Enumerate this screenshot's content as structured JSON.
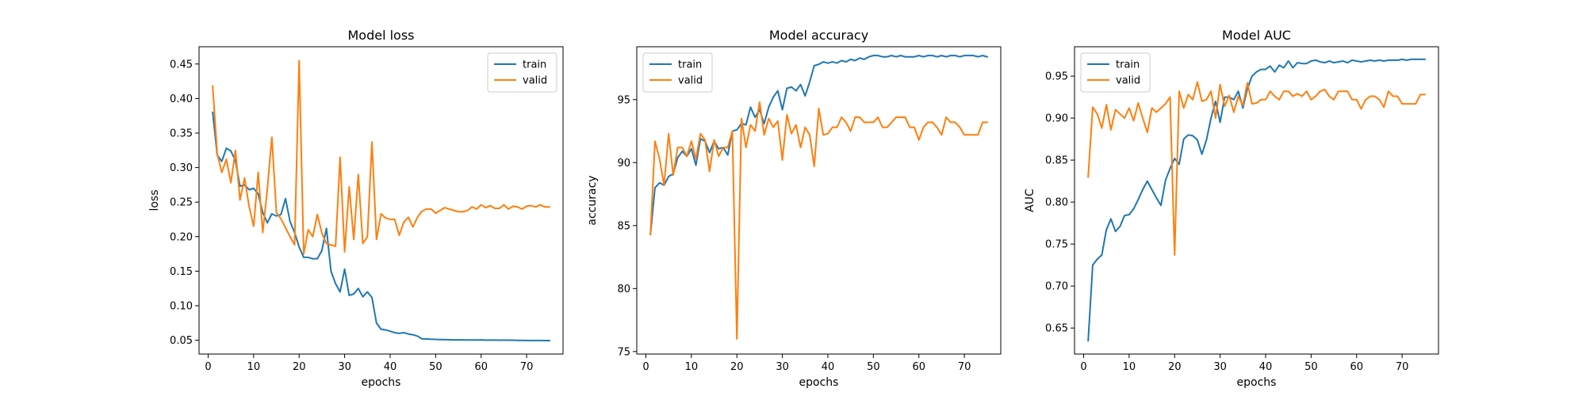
{
  "colors": {
    "train": "#1f77b4",
    "valid": "#ff7f0e"
  },
  "chart_data": [
    {
      "type": "line",
      "title": "Model loss",
      "xlabel": "epochs",
      "ylabel": "loss",
      "xlim": [
        -2,
        78
      ],
      "ylim": [
        0.03,
        0.475
      ],
      "xticks": [
        0,
        10,
        20,
        30,
        40,
        50,
        60,
        70
      ],
      "yticks": [
        0.05,
        0.1,
        0.15,
        0.2,
        0.25,
        0.3,
        0.35,
        0.4,
        0.45
      ],
      "ytick_labels": [
        "0.05",
        "0.10",
        "0.15",
        "0.20",
        "0.25",
        "0.30",
        "0.35",
        "0.40",
        "0.45"
      ],
      "legend": "top-right",
      "grid": false,
      "series": [
        {
          "name": "train",
          "color": "#1f77b4",
          "x": [
            1,
            2,
            3,
            4,
            5,
            6,
            7,
            8,
            9,
            10,
            11,
            12,
            13,
            14,
            15,
            16,
            17,
            18,
            19,
            20,
            21,
            22,
            23,
            24,
            25,
            26,
            27,
            28,
            29,
            30,
            31,
            32,
            33,
            34,
            35,
            36,
            37,
            38,
            39,
            40,
            41,
            42,
            43,
            44,
            45,
            46,
            47,
            48,
            49,
            50,
            51,
            52,
            53,
            54,
            55,
            56,
            57,
            58,
            59,
            60,
            61,
            62,
            63,
            64,
            65,
            66,
            67,
            68,
            69,
            70,
            71,
            72,
            73,
            74,
            75
          ],
          "y": [
            0.38,
            0.318,
            0.309,
            0.328,
            0.324,
            0.31,
            0.273,
            0.275,
            0.268,
            0.27,
            0.262,
            0.235,
            0.22,
            0.233,
            0.23,
            0.232,
            0.255,
            0.222,
            0.206,
            0.185,
            0.17,
            0.17,
            0.168,
            0.168,
            0.18,
            0.212,
            0.15,
            0.132,
            0.12,
            0.153,
            0.115,
            0.117,
            0.125,
            0.113,
            0.12,
            0.112,
            0.075,
            0.066,
            0.065,
            0.063,
            0.061,
            0.06,
            0.061,
            0.059,
            0.058,
            0.056,
            0.052,
            0.052,
            0.0515,
            0.0512,
            0.051,
            0.051,
            0.0507,
            0.0505,
            0.0505,
            0.0505,
            0.0503,
            0.0503,
            0.0503,
            0.0505,
            0.0502,
            0.0502,
            0.0502,
            0.05,
            0.0502,
            0.05,
            0.05,
            0.0498,
            0.0498,
            0.0497,
            0.0497,
            0.0496,
            0.0496,
            0.0495,
            0.0495
          ]
        },
        {
          "name": "valid",
          "color": "#ff7f0e",
          "x": [
            1,
            2,
            3,
            4,
            5,
            6,
            7,
            8,
            9,
            10,
            11,
            12,
            13,
            14,
            15,
            16,
            17,
            18,
            19,
            20,
            21,
            22,
            23,
            24,
            25,
            26,
            27,
            28,
            29,
            30,
            31,
            32,
            33,
            34,
            35,
            36,
            37,
            38,
            39,
            40,
            41,
            42,
            43,
            44,
            45,
            46,
            47,
            48,
            49,
            50,
            51,
            52,
            53,
            54,
            55,
            56,
            57,
            58,
            59,
            60,
            61,
            62,
            63,
            64,
            65,
            66,
            67,
            68,
            69,
            70,
            71,
            72,
            73,
            74,
            75
          ],
          "y": [
            0.418,
            0.32,
            0.293,
            0.312,
            0.278,
            0.325,
            0.253,
            0.285,
            0.244,
            0.215,
            0.293,
            0.206,
            0.268,
            0.344,
            0.235,
            0.226,
            0.213,
            0.2,
            0.188,
            0.455,
            0.175,
            0.21,
            0.2,
            0.232,
            0.205,
            0.19,
            0.188,
            0.186,
            0.315,
            0.178,
            0.272,
            0.196,
            0.29,
            0.19,
            0.2,
            0.337,
            0.196,
            0.233,
            0.227,
            0.225,
            0.225,
            0.202,
            0.221,
            0.228,
            0.214,
            0.228,
            0.237,
            0.24,
            0.24,
            0.234,
            0.238,
            0.242,
            0.24,
            0.238,
            0.236,
            0.236,
            0.238,
            0.243,
            0.24,
            0.246,
            0.242,
            0.245,
            0.241,
            0.241,
            0.246,
            0.24,
            0.244,
            0.243,
            0.24,
            0.244,
            0.245,
            0.243,
            0.246,
            0.243,
            0.243
          ]
        }
      ]
    },
    {
      "type": "line",
      "title": "Model accuracy",
      "xlabel": "epochs",
      "ylabel": "accuracy",
      "xlim": [
        -2,
        78
      ],
      "ylim": [
        74.8,
        99.2
      ],
      "xticks": [
        0,
        10,
        20,
        30,
        40,
        50,
        60,
        70
      ],
      "yticks": [
        75,
        80,
        85,
        90,
        95
      ],
      "ytick_labels": [
        "75",
        "80",
        "85",
        "90",
        "95"
      ],
      "legend": "top-left",
      "grid": false,
      "series": [
        {
          "name": "train",
          "color": "#1f77b4",
          "x": [
            1,
            2,
            3,
            4,
            5,
            6,
            7,
            8,
            9,
            10,
            11,
            12,
            13,
            14,
            15,
            16,
            17,
            18,
            19,
            20,
            21,
            22,
            23,
            24,
            25,
            26,
            27,
            28,
            29,
            30,
            31,
            32,
            33,
            34,
            35,
            36,
            37,
            38,
            39,
            40,
            41,
            42,
            43,
            44,
            45,
            46,
            47,
            48,
            49,
            50,
            51,
            52,
            53,
            54,
            55,
            56,
            57,
            58,
            59,
            60,
            61,
            62,
            63,
            64,
            65,
            66,
            67,
            68,
            69,
            70,
            71,
            72,
            73,
            74,
            75
          ],
          "y": [
            84.3,
            88.0,
            88.4,
            88.2,
            88.9,
            89.1,
            90.4,
            90.9,
            90.5,
            91.1,
            89.8,
            91.9,
            91.7,
            90.8,
            91.7,
            91.1,
            91.2,
            90.6,
            92.5,
            92.6,
            93.1,
            93.0,
            94.4,
            93.6,
            94.2,
            93.1,
            94.4,
            95.2,
            95.7,
            94.2,
            95.9,
            96.0,
            95.7,
            96.2,
            95.3,
            96.4,
            97.7,
            97.8,
            98.0,
            97.9,
            98.0,
            97.9,
            98.1,
            98.0,
            98.2,
            98.1,
            98.3,
            98.2,
            98.4,
            98.5,
            98.5,
            98.4,
            98.4,
            98.5,
            98.4,
            98.5,
            98.4,
            98.4,
            98.4,
            98.5,
            98.4,
            98.5,
            98.5,
            98.4,
            98.5,
            98.4,
            98.5,
            98.5,
            98.4,
            98.5,
            98.5,
            98.5,
            98.4,
            98.5,
            98.4
          ]
        },
        {
          "name": "valid",
          "color": "#ff7f0e",
          "x": [
            1,
            2,
            3,
            4,
            5,
            6,
            7,
            8,
            9,
            10,
            11,
            12,
            13,
            14,
            15,
            16,
            17,
            18,
            19,
            20,
            21,
            22,
            23,
            24,
            25,
            26,
            27,
            28,
            29,
            30,
            31,
            32,
            33,
            34,
            35,
            36,
            37,
            38,
            39,
            40,
            41,
            42,
            43,
            44,
            45,
            46,
            47,
            48,
            49,
            50,
            51,
            52,
            53,
            54,
            55,
            56,
            57,
            58,
            59,
            60,
            61,
            62,
            63,
            64,
            65,
            66,
            67,
            68,
            69,
            70,
            71,
            72,
            73,
            74,
            75
          ],
          "y": [
            84.3,
            91.7,
            90.3,
            88.2,
            92.3,
            89.0,
            91.2,
            91.2,
            90.5,
            91.7,
            90.3,
            92.3,
            91.8,
            89.3,
            91.8,
            90.5,
            91.2,
            91.2,
            92.5,
            76.0,
            93.5,
            91.2,
            93.0,
            92.5,
            94.8,
            92.2,
            93.5,
            92.8,
            93.3,
            90.2,
            93.8,
            92.3,
            93.0,
            91.2,
            92.8,
            92.2,
            89.7,
            94.3,
            92.2,
            92.3,
            92.8,
            92.8,
            93.6,
            93.2,
            92.5,
            93.6,
            93.6,
            93.2,
            93.2,
            93.2,
            93.6,
            92.8,
            92.8,
            93.2,
            93.6,
            93.6,
            93.6,
            92.8,
            92.8,
            91.8,
            92.8,
            93.2,
            93.2,
            92.8,
            92.2,
            93.6,
            93.2,
            93.2,
            92.8,
            92.2,
            92.2,
            92.2,
            92.2,
            93.2,
            93.2
          ]
        }
      ]
    },
    {
      "type": "line",
      "title": "Model AUC",
      "xlabel": "epochs",
      "ylabel": "AUC",
      "xlim": [
        -2,
        78
      ],
      "ylim": [
        0.619,
        0.985
      ],
      "xticks": [
        0,
        10,
        20,
        30,
        40,
        50,
        60,
        70
      ],
      "yticks": [
        0.65,
        0.7,
        0.75,
        0.8,
        0.85,
        0.9,
        0.95
      ],
      "ytick_labels": [
        "0.65",
        "0.70",
        "0.75",
        "0.80",
        "0.85",
        "0.90",
        "0.95"
      ],
      "legend": "top-left",
      "grid": false,
      "series": [
        {
          "name": "train",
          "color": "#1f77b4",
          "x": [
            1,
            2,
            3,
            4,
            5,
            6,
            7,
            8,
            9,
            10,
            11,
            12,
            13,
            14,
            15,
            16,
            17,
            18,
            19,
            20,
            21,
            22,
            23,
            24,
            25,
            26,
            27,
            28,
            29,
            30,
            31,
            32,
            33,
            34,
            35,
            36,
            37,
            38,
            39,
            40,
            41,
            42,
            43,
            44,
            45,
            46,
            47,
            48,
            49,
            50,
            51,
            52,
            53,
            54,
            55,
            56,
            57,
            58,
            59,
            60,
            61,
            62,
            63,
            64,
            65,
            66,
            67,
            68,
            69,
            70,
            71,
            72,
            73,
            74,
            75
          ],
          "y": [
            0.635,
            0.725,
            0.732,
            0.737,
            0.767,
            0.78,
            0.765,
            0.771,
            0.784,
            0.785,
            0.792,
            0.803,
            0.815,
            0.825,
            0.815,
            0.805,
            0.796,
            0.826,
            0.84,
            0.852,
            0.845,
            0.875,
            0.88,
            0.879,
            0.874,
            0.857,
            0.874,
            0.9,
            0.92,
            0.895,
            0.925,
            0.925,
            0.922,
            0.932,
            0.912,
            0.935,
            0.95,
            0.955,
            0.958,
            0.958,
            0.962,
            0.955,
            0.963,
            0.96,
            0.968,
            0.96,
            0.966,
            0.965,
            0.965,
            0.968,
            0.969,
            0.967,
            0.966,
            0.968,
            0.966,
            0.967,
            0.968,
            0.966,
            0.969,
            0.968,
            0.967,
            0.968,
            0.969,
            0.968,
            0.969,
            0.968,
            0.969,
            0.969,
            0.969,
            0.97,
            0.969,
            0.97,
            0.97,
            0.97,
            0.97
          ]
        },
        {
          "name": "valid",
          "color": "#ff7f0e",
          "x": [
            1,
            2,
            3,
            4,
            5,
            6,
            7,
            8,
            9,
            10,
            11,
            12,
            13,
            14,
            15,
            16,
            17,
            18,
            19,
            20,
            21,
            22,
            23,
            24,
            25,
            26,
            27,
            28,
            29,
            30,
            31,
            32,
            33,
            34,
            35,
            36,
            37,
            38,
            39,
            40,
            41,
            42,
            43,
            44,
            45,
            46,
            47,
            48,
            49,
            50,
            51,
            52,
            53,
            54,
            55,
            56,
            57,
            58,
            59,
            60,
            61,
            62,
            63,
            64,
            65,
            66,
            67,
            68,
            69,
            70,
            71,
            72,
            73,
            74,
            75
          ],
          "y": [
            0.83,
            0.913,
            0.905,
            0.888,
            0.916,
            0.886,
            0.91,
            0.905,
            0.9,
            0.912,
            0.897,
            0.918,
            0.9,
            0.883,
            0.912,
            0.907,
            0.912,
            0.917,
            0.925,
            0.737,
            0.932,
            0.912,
            0.928,
            0.922,
            0.943,
            0.92,
            0.922,
            0.932,
            0.9,
            0.94,
            0.914,
            0.927,
            0.907,
            0.926,
            0.915,
            0.942,
            0.917,
            0.918,
            0.922,
            0.922,
            0.932,
            0.926,
            0.922,
            0.932,
            0.932,
            0.926,
            0.929,
            0.926,
            0.932,
            0.922,
            0.926,
            0.932,
            0.934,
            0.926,
            0.922,
            0.932,
            0.932,
            0.932,
            0.922,
            0.922,
            0.911,
            0.922,
            0.926,
            0.926,
            0.922,
            0.913,
            0.932,
            0.926,
            0.926,
            0.917,
            0.917,
            0.917,
            0.917,
            0.928,
            0.928
          ]
        }
      ]
    }
  ]
}
